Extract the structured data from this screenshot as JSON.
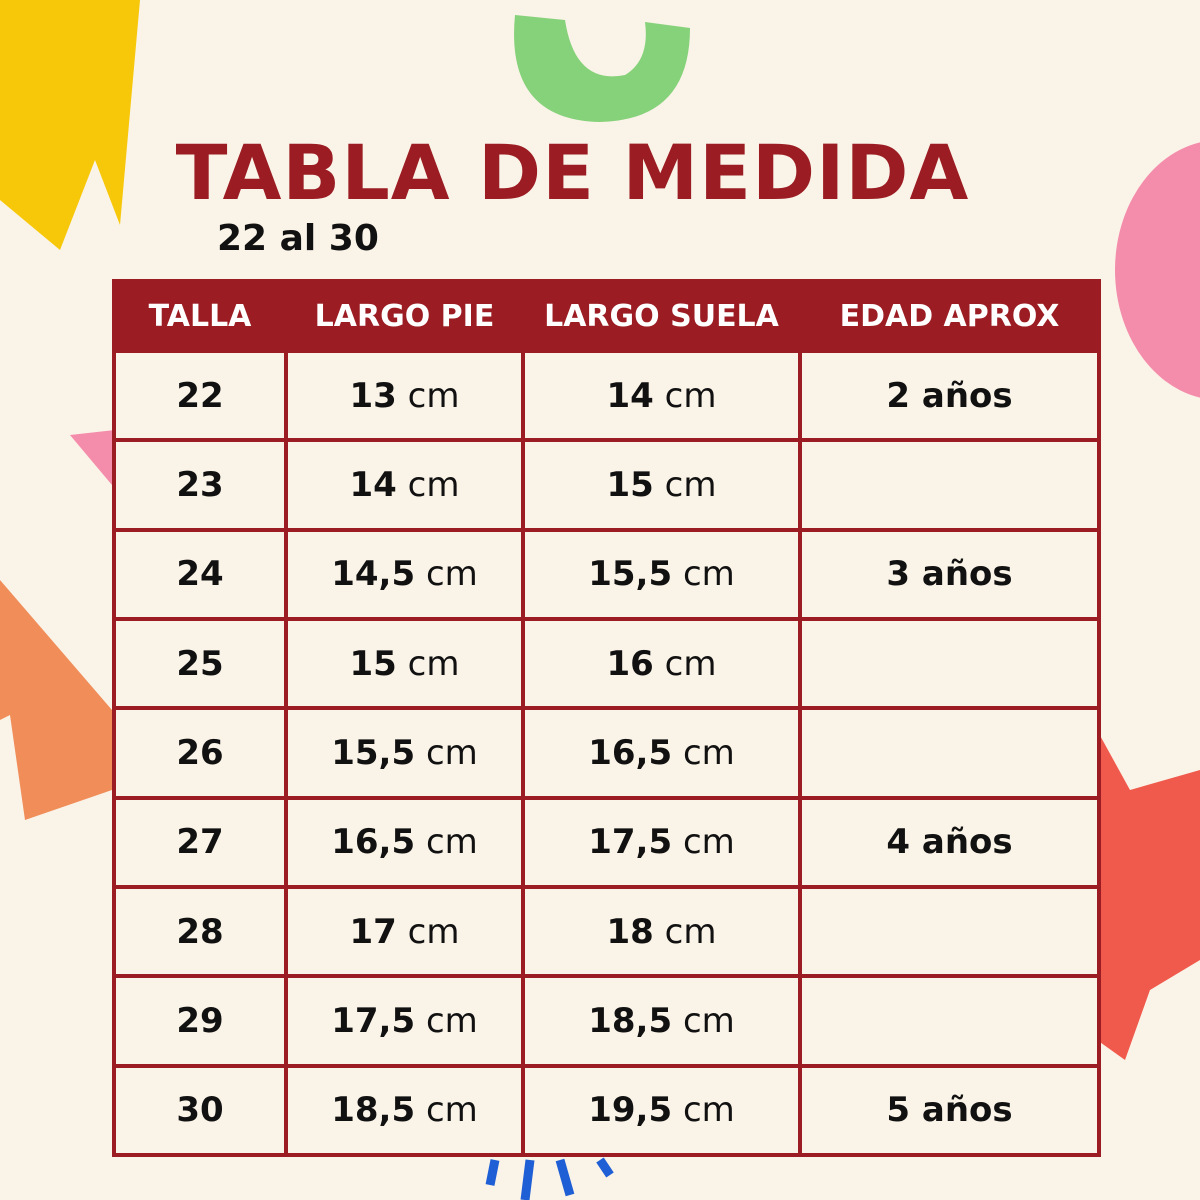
{
  "header": {
    "title": "TABLA DE MEDIDA",
    "subtitle": "22 al 30"
  },
  "table": {
    "columns": [
      "TALLA",
      "LARGO PIE",
      "LARGO SUELA",
      "EDAD APROX"
    ],
    "rows": [
      {
        "talla": "22",
        "largo_pie": {
          "value": "13",
          "unit": "cm"
        },
        "largo_suela": {
          "value": "14",
          "unit": "cm"
        },
        "edad": "2 años"
      },
      {
        "talla": "23",
        "largo_pie": {
          "value": "14",
          "unit": "cm"
        },
        "largo_suela": {
          "value": "15",
          "unit": "cm"
        }
      },
      {
        "talla": "24",
        "largo_pie": {
          "value": "14,5",
          "unit": "cm"
        },
        "largo_suela": {
          "value": "15,5",
          "unit": "cm"
        },
        "edad": "3 años"
      },
      {
        "talla": "25",
        "largo_pie": {
          "value": "15",
          "unit": "cm"
        },
        "largo_suela": {
          "value": "16",
          "unit": "cm"
        }
      },
      {
        "talla": "26",
        "largo_pie": {
          "value": "15,5",
          "unit": "cm"
        },
        "largo_suela": {
          "value": "16,5",
          "unit": "cm"
        }
      },
      {
        "talla": "27",
        "largo_pie": {
          "value": "16,5",
          "unit": "cm"
        },
        "largo_suela": {
          "value": "17,5",
          "unit": "cm"
        },
        "edad": "4 años"
      },
      {
        "talla": "28",
        "largo_pie": {
          "value": "17",
          "unit": "cm"
        },
        "largo_suela": {
          "value": "18",
          "unit": "cm"
        }
      },
      {
        "talla": "29",
        "largo_pie": {
          "value": "17,5",
          "unit": "cm"
        },
        "largo_suela": {
          "value": "18,5",
          "unit": "cm"
        }
      },
      {
        "talla": "30",
        "largo_pie": {
          "value": "18,5",
          "unit": "cm"
        },
        "largo_suela": {
          "value": "19,5",
          "unit": "cm"
        },
        "edad": "5 años"
      }
    ]
  }
}
